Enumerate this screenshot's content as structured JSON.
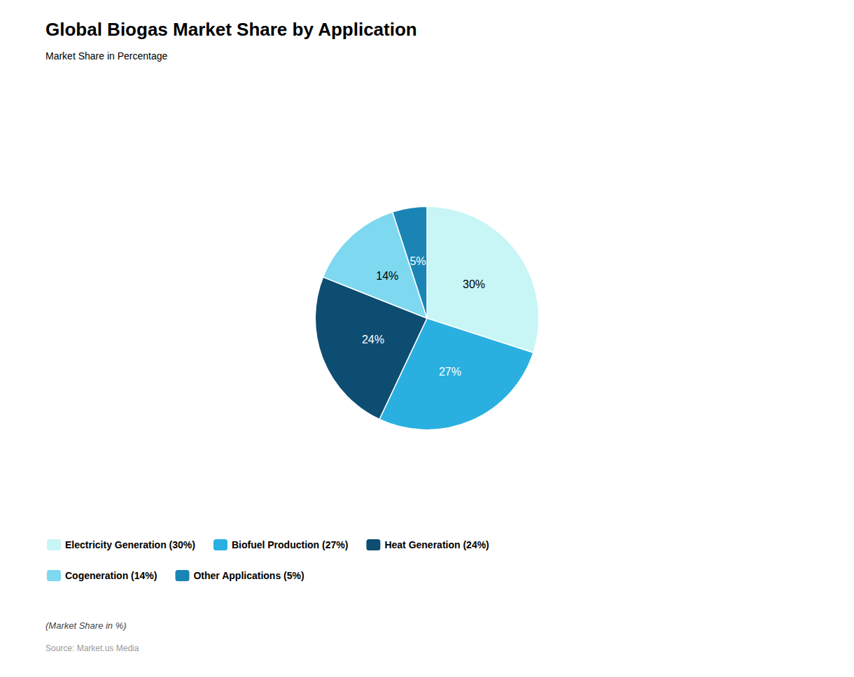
{
  "chart_data": {
    "type": "pie",
    "title": "Global Biogas Market Share by Application",
    "subtitle": "Market Share in Percentage",
    "categories": [
      "Electricity Generation (30%)",
      "Biofuel Production (27%)",
      "Heat Generation (24%)",
      "Cogeneration (14%)",
      "Other Applications (5%)"
    ],
    "values": [
      30,
      27,
      24,
      14,
      5
    ],
    "value_labels": [
      "30%",
      "27%",
      "24%",
      "14%",
      "5%"
    ],
    "data_labels": true,
    "colors": [
      "#c8f5f5",
      "#2ab0e0",
      "#0e4d72",
      "#7dd8f0",
      "#1a85b5"
    ],
    "legend": "lower left",
    "footnote": "(Market Share in %)",
    "source": "Source: Market.us Media"
  }
}
